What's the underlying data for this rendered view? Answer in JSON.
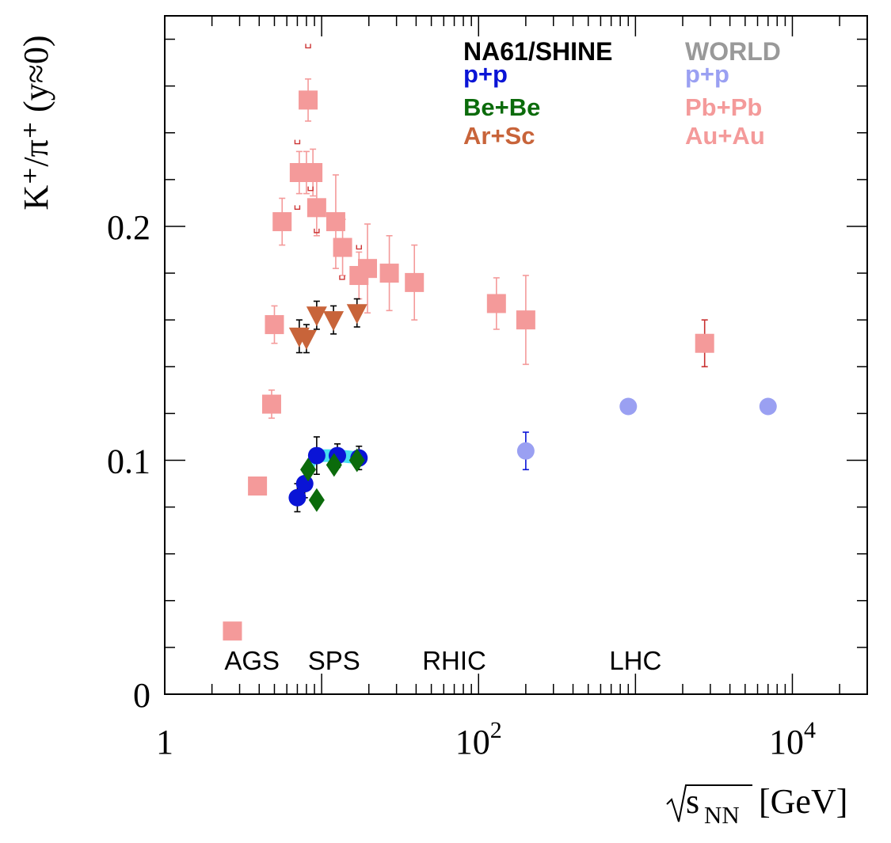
{
  "chart_data": {
    "type": "scatter",
    "x_scale": "log",
    "xlim": [
      1,
      30000
    ],
    "ylim": [
      0,
      0.29
    ],
    "xlabel": {
      "prefix": "√",
      "main": "s",
      "sub": "NN",
      "unit": "[GeV]"
    },
    "ylabel": "K⁺/π⁺ (y≈0)",
    "x_ticks": [
      {
        "value": 1,
        "label": "1"
      },
      {
        "value": 100,
        "label": "10",
        "sup": "2"
      },
      {
        "value": 10000,
        "label": "10",
        "sup": "4"
      }
    ],
    "y_ticks": [
      {
        "value": 0,
        "label": "0"
      },
      {
        "value": 0.1,
        "label": "0.1"
      },
      {
        "value": 0.2,
        "label": "0.2"
      }
    ],
    "regions": [
      {
        "label": "AGS",
        "x": 3.6
      },
      {
        "label": "SPS",
        "x": 12.0
      },
      {
        "label": "RHIC",
        "x": 70
      },
      {
        "label": "LHC",
        "x": 1000
      }
    ],
    "legend": {
      "na61_header": "NA61/SHINE",
      "world_header": "WORLD",
      "na61_entries": [
        {
          "label": "p+p",
          "color": "#0a14d6"
        },
        {
          "label": "Be+Be",
          "color": "#0b6b0b"
        },
        {
          "label": "Ar+Sc",
          "color": "#c8643a"
        }
      ],
      "world_entries": [
        {
          "label": "p+p",
          "color": "#9aa0f2"
        },
        {
          "label": "Pb+Pb",
          "color": "#f49a9a"
        },
        {
          "label": "Au+Au",
          "color": "#f49a9a"
        }
      ]
    },
    "colors": {
      "header_na61": "#000000",
      "header_world": "#999999"
    },
    "series": [
      {
        "name": "Pb+Pb / Au+Au (WORLD)",
        "marker": "square",
        "color": "#f49a9a",
        "points": [
          {
            "x": 2.7,
            "y": 0.027
          },
          {
            "x": 3.9,
            "y": 0.089
          },
          {
            "x": 4.8,
            "y": 0.124,
            "err": 0.006
          },
          {
            "x": 5.0,
            "y": 0.158,
            "err": 0.008
          },
          {
            "x": 5.6,
            "y": 0.202,
            "err": 0.01
          },
          {
            "x": 7.2,
            "y": 0.223,
            "err": 0.009
          },
          {
            "x": 8.0,
            "y": 0.223,
            "err": 0.009
          },
          {
            "x": 8.2,
            "y": 0.254,
            "err": 0.009
          },
          {
            "x": 8.8,
            "y": 0.223,
            "err": 0.01
          },
          {
            "x": 9.3,
            "y": 0.208,
            "err": 0.012
          },
          {
            "x": 12.3,
            "y": 0.202,
            "err": 0.02
          },
          {
            "x": 13.6,
            "y": 0.191,
            "err": 0.012
          },
          {
            "x": 17.3,
            "y": 0.179,
            "err": 0.01
          },
          {
            "x": 19.6,
            "y": 0.182,
            "err": 0.019
          },
          {
            "x": 27,
            "y": 0.18,
            "err": 0.016
          },
          {
            "x": 39,
            "y": 0.176,
            "err": 0.016
          },
          {
            "x": 130,
            "y": 0.167,
            "err": 0.011
          },
          {
            "x": 200,
            "y": 0.16,
            "err": 0.019
          }
        ]
      },
      {
        "name": "Pb+Pb LHC",
        "marker": "square",
        "color": "#f49a9a",
        "err_color": "#c83030",
        "points": [
          {
            "x": 2760,
            "y": 0.15,
            "err": 0.01
          }
        ]
      },
      {
        "name": "Ar+Sc (NA61/SHINE)",
        "marker": "triangle-down",
        "color": "#c8643a",
        "err_color": "#000000",
        "points": [
          {
            "x": 7.2,
            "y": 0.153,
            "err": 0.007
          },
          {
            "x": 8.0,
            "y": 0.152,
            "err": 0.006
          },
          {
            "x": 9.3,
            "y": 0.162,
            "err": 0.006
          },
          {
            "x": 11.9,
            "y": 0.16,
            "err": 0.006
          },
          {
            "x": 16.8,
            "y": 0.163,
            "err": 0.006
          }
        ]
      },
      {
        "name": "p+p (NA61/SHINE)",
        "marker": "circle",
        "color": "#0a14d6",
        "err_color": "#000000",
        "band": "#33ddee",
        "points": [
          {
            "x": 7.0,
            "y": 0.084,
            "err": 0.006
          },
          {
            "x": 7.8,
            "y": 0.09,
            "err": 0.006
          },
          {
            "x": 9.3,
            "y": 0.102,
            "err": 0.008
          },
          {
            "x": 12.6,
            "y": 0.102,
            "err": 0.005
          },
          {
            "x": 17.3,
            "y": 0.101,
            "err": 0.005
          }
        ]
      },
      {
        "name": "Be+Be (NA61/SHINE)",
        "marker": "diamond",
        "color": "#0b6b0b",
        "points": [
          {
            "x": 8.2,
            "y": 0.096
          },
          {
            "x": 9.3,
            "y": 0.083
          },
          {
            "x": 12.0,
            "y": 0.098
          },
          {
            "x": 16.8,
            "y": 0.1
          }
        ]
      },
      {
        "name": "p+p (WORLD)",
        "marker": "circle",
        "color": "#9aa0f2",
        "err_color": "#0a14d6",
        "points": [
          {
            "x": 200,
            "y": 0.104,
            "err": 0.008
          },
          {
            "x": 900,
            "y": 0.123
          },
          {
            "x": 7000,
            "y": 0.123
          }
        ]
      }
    ],
    "sys_brackets": [
      {
        "x": 8.2,
        "y": 0.277
      },
      {
        "x": 7.0,
        "y": 0.236
      },
      {
        "x": 7.0,
        "y": 0.208
      },
      {
        "x": 8.5,
        "y": 0.216
      },
      {
        "x": 9.3,
        "y": 0.198
      },
      {
        "x": 13.5,
        "y": 0.178
      },
      {
        "x": 17.3,
        "y": 0.191
      }
    ]
  }
}
